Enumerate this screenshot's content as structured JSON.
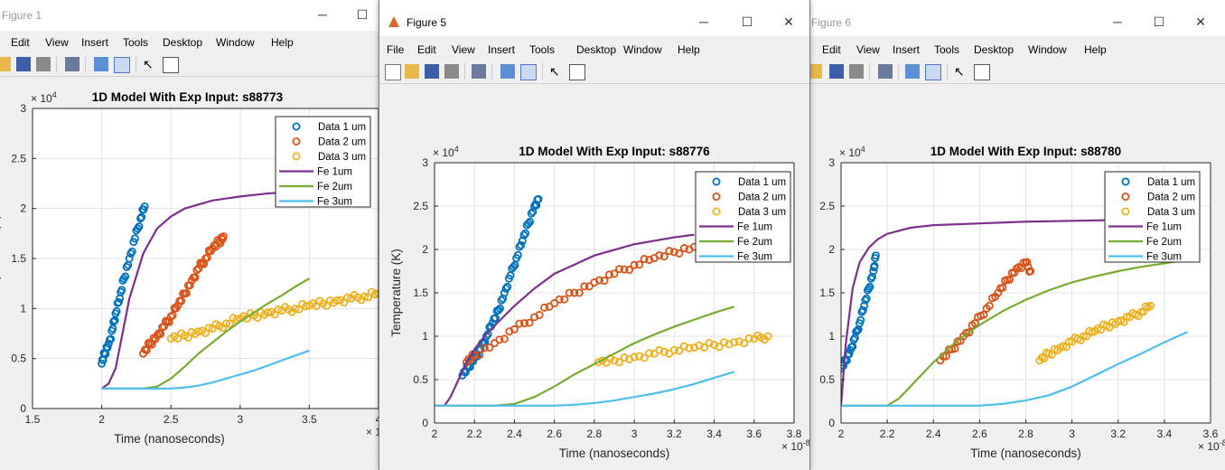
{
  "menu": [
    "File",
    "Edit",
    "View",
    "Insert",
    "Tools",
    "Desktop",
    "Window",
    "Help"
  ],
  "windows": [
    {
      "key": "w1",
      "title": "Figure 1",
      "active": false
    },
    {
      "key": "w5",
      "title": "Figure 5",
      "active": true
    },
    {
      "key": "w6",
      "title": "Figure 6",
      "active": false
    }
  ],
  "axes_common": {
    "xlabel": "Time (nanoseconds)",
    "ylabel": "Temperature (K)",
    "yexp": "× 10",
    "yexp_pow": "4",
    "xexp": "× 10",
    "xexp_pow": "-8"
  },
  "legend_labels": [
    "Data 1 um",
    "Data 2 um",
    "Data 3 um",
    "Fe 1um",
    "Fe 2um",
    "Fe 3um"
  ],
  "colors": {
    "d1": "#0072BD",
    "d2": "#D95319",
    "d3": "#EDB120",
    "fe1": "#7E2F8E",
    "fe2": "#77AC30",
    "fe3": "#4DBEEE"
  },
  "chart_data": [
    {
      "type": "scatter",
      "title": "1D Model With Exp Input: s88773",
      "xlim": [
        1.5,
        4
      ],
      "ylim": [
        0,
        3
      ],
      "xticks": [
        1.5,
        2,
        2.5,
        3,
        3.5,
        4
      ],
      "yticks": [
        0,
        0.5,
        1,
        1.5,
        2,
        2.5,
        3
      ],
      "ytick_labels": [
        "0",
        "0.5",
        "1",
        "1.5",
        "2",
        "2.5",
        "3"
      ],
      "xtick_labels": [
        "1.5",
        "2",
        "2.5",
        "3",
        "3.5",
        "4"
      ],
      "grid": true,
      "legend": "top-right",
      "series": [
        {
          "name": "Data 1 um",
          "kind": "markers",
          "color": "d1",
          "x": [
            2,
            2.02,
            2.05,
            2.08,
            2.1,
            2.13,
            2.16,
            2.2,
            2.24,
            2.28,
            2.31
          ],
          "y": [
            0.45,
            0.55,
            0.65,
            0.8,
            0.95,
            1.1,
            1.3,
            1.5,
            1.7,
            1.9,
            2.02
          ]
        },
        {
          "name": "Data 2 um",
          "kind": "markers",
          "color": "d2",
          "x": [
            2.3,
            2.35,
            2.4,
            2.45,
            2.5,
            2.55,
            2.6,
            2.65,
            2.7,
            2.75,
            2.8,
            2.85,
            2.88
          ],
          "y": [
            0.55,
            0.65,
            0.73,
            0.82,
            0.92,
            1.03,
            1.15,
            1.28,
            1.4,
            1.5,
            1.6,
            1.67,
            1.72
          ]
        },
        {
          "name": "Data 3 um",
          "kind": "markers",
          "color": "d3",
          "x": [
            2.5,
            2.6,
            2.7,
            2.8,
            2.9,
            3,
            3.1,
            3.2,
            3.3,
            3.4,
            3.5,
            3.6,
            3.7,
            3.8,
            3.9,
            4,
            4.1
          ],
          "y": [
            0.7,
            0.73,
            0.77,
            0.8,
            0.85,
            0.9,
            0.93,
            0.96,
            0.98,
            1,
            1.03,
            1.05,
            1.08,
            1.1,
            1.12,
            1.15,
            1.18
          ]
        },
        {
          "name": "Fe 1um",
          "kind": "line",
          "color": "fe1",
          "x": [
            2,
            2.05,
            2.1,
            2.15,
            2.2,
            2.3,
            2.4,
            2.5,
            2.6,
            2.8,
            3,
            3.2,
            3.5
          ],
          "y": [
            0.2,
            0.25,
            0.4,
            0.75,
            1.1,
            1.55,
            1.8,
            1.92,
            2,
            2.08,
            2.12,
            2.15,
            2.18
          ]
        },
        {
          "name": "Fe 2um",
          "kind": "line",
          "color": "fe2",
          "x": [
            2,
            2.3,
            2.4,
            2.5,
            2.6,
            2.7,
            2.8,
            2.9,
            3,
            3.1,
            3.2,
            3.3,
            3.4,
            3.5
          ],
          "y": [
            0.2,
            0.2,
            0.22,
            0.3,
            0.42,
            0.55,
            0.66,
            0.77,
            0.87,
            0.96,
            1.05,
            1.13,
            1.22,
            1.3
          ]
        },
        {
          "name": "Fe 3um",
          "kind": "line",
          "color": "fe3",
          "x": [
            2,
            2.5,
            2.6,
            2.7,
            2.8,
            2.9,
            3,
            3.1,
            3.2,
            3.3,
            3.4,
            3.5
          ],
          "y": [
            0.2,
            0.2,
            0.21,
            0.23,
            0.26,
            0.3,
            0.34,
            0.38,
            0.43,
            0.48,
            0.53,
            0.58
          ]
        }
      ]
    },
    {
      "type": "scatter",
      "title": "1D Model With Exp Input: s88776",
      "xlim": [
        2,
        3.8
      ],
      "ylim": [
        0,
        3
      ],
      "xticks": [
        2,
        2.2,
        2.4,
        2.6,
        2.8,
        3,
        3.2,
        3.4,
        3.6,
        3.8
      ],
      "yticks": [
        0,
        0.5,
        1,
        1.5,
        2,
        2.5,
        3
      ],
      "ytick_labels": [
        "0",
        "0.5",
        "1",
        "1.5",
        "2",
        "2.5",
        "3"
      ],
      "xtick_labels": [
        "2",
        "2.2",
        "2.4",
        "2.6",
        "2.8",
        "3",
        "3.2",
        "3.4",
        "3.6",
        "3.8"
      ],
      "grid": true,
      "legend": "top-right",
      "series": [
        {
          "name": "Data 1 um",
          "kind": "markers",
          "color": "d1",
          "x": [
            2.14,
            2.17,
            2.2,
            2.23,
            2.26,
            2.29,
            2.32,
            2.35,
            2.38,
            2.41,
            2.44,
            2.47,
            2.5,
            2.52
          ],
          "y": [
            0.55,
            0.65,
            0.75,
            0.85,
            1.0,
            1.15,
            1.3,
            1.5,
            1.7,
            1.9,
            2.1,
            2.3,
            2.5,
            2.58
          ]
        },
        {
          "name": "Data 2 um",
          "kind": "markers",
          "color": "d2",
          "x": [
            2.16,
            2.2,
            2.3,
            2.4,
            2.5,
            2.6,
            2.7,
            2.8,
            2.9,
            3,
            3.1,
            3.2,
            3.3
          ],
          "y": [
            0.7,
            0.78,
            0.92,
            1.08,
            1.22,
            1.38,
            1.5,
            1.62,
            1.72,
            1.82,
            1.9,
            1.97,
            2.03
          ]
        },
        {
          "name": "Data 3 um",
          "kind": "markers",
          "color": "d3",
          "x": [
            2.82,
            2.9,
            3,
            3.1,
            3.2,
            3.3,
            3.4,
            3.5,
            3.6,
            3.67
          ],
          "y": [
            0.7,
            0.72,
            0.76,
            0.8,
            0.84,
            0.87,
            0.9,
            0.93,
            0.97,
            1.0
          ]
        },
        {
          "name": "Fe 1um",
          "kind": "line",
          "color": "fe1",
          "x": [
            2,
            2.05,
            2.08,
            2.12,
            2.16,
            2.2,
            2.25,
            2.3,
            2.4,
            2.5,
            2.6,
            2.8,
            3,
            3.2,
            3.3
          ],
          "y": [
            0.2,
            0.2,
            0.3,
            0.5,
            0.7,
            0.85,
            1.0,
            1.12,
            1.35,
            1.55,
            1.72,
            1.93,
            2.06,
            2.14,
            2.17
          ]
        },
        {
          "name": "Fe 2um",
          "kind": "line",
          "color": "fe2",
          "x": [
            2,
            2.3,
            2.4,
            2.5,
            2.6,
            2.7,
            2.8,
            2.9,
            3,
            3.1,
            3.2,
            3.3,
            3.4,
            3.5
          ],
          "y": [
            0.2,
            0.2,
            0.22,
            0.3,
            0.42,
            0.56,
            0.68,
            0.8,
            0.92,
            1.02,
            1.11,
            1.19,
            1.27,
            1.34
          ]
        },
        {
          "name": "Fe 3um",
          "kind": "line",
          "color": "fe3",
          "x": [
            2,
            2.6,
            2.7,
            2.8,
            2.9,
            3,
            3.1,
            3.2,
            3.3,
            3.4,
            3.5
          ],
          "y": [
            0.2,
            0.2,
            0.21,
            0.23,
            0.26,
            0.3,
            0.34,
            0.39,
            0.45,
            0.52,
            0.59
          ]
        }
      ]
    },
    {
      "type": "scatter",
      "title": "1D Model With Exp Input: s88780",
      "xlim": [
        2,
        3.6
      ],
      "ylim": [
        0,
        3
      ],
      "xticks": [
        2,
        2.2,
        2.4,
        2.6,
        2.8,
        3,
        3.2,
        3.4,
        3.6
      ],
      "yticks": [
        0,
        0.5,
        1,
        1.5,
        2,
        2.5,
        3
      ],
      "ytick_labels": [
        "0",
        "0.5",
        "1",
        "1.5",
        "2",
        "2.5",
        "3"
      ],
      "xtick_labels": [
        "2",
        "2.2",
        "2.4",
        "2.6",
        "2.8",
        "3",
        "3.2",
        "3.4",
        "3.6"
      ],
      "grid": true,
      "legend": "top-right",
      "series": [
        {
          "name": "Data 1 um",
          "kind": "markers",
          "color": "d1",
          "x": [
            2,
            2.02,
            2.04,
            2.06,
            2.08,
            2.1,
            2.12,
            2.14,
            2.15
          ],
          "y": [
            0.63,
            0.72,
            0.84,
            0.98,
            1.15,
            1.35,
            1.55,
            1.75,
            1.93
          ]
        },
        {
          "name": "Data 2 um",
          "kind": "markers",
          "color": "d2",
          "x": [
            2.43,
            2.48,
            2.53,
            2.58,
            2.63,
            2.68,
            2.72,
            2.76,
            2.8,
            2.82
          ],
          "y": [
            0.72,
            0.85,
            1.0,
            1.15,
            1.32,
            1.5,
            1.65,
            1.78,
            1.85,
            1.75
          ]
        },
        {
          "name": "Data 3 um",
          "kind": "markers",
          "color": "d3",
          "x": [
            2.86,
            2.9,
            2.95,
            3,
            3.05,
            3.1,
            3.15,
            3.2,
            3.25,
            3.3,
            3.34
          ],
          "y": [
            0.72,
            0.8,
            0.87,
            0.94,
            1.0,
            1.06,
            1.12,
            1.17,
            1.22,
            1.28,
            1.35
          ]
        },
        {
          "name": "Fe 1um",
          "kind": "line",
          "color": "fe1",
          "x": [
            2,
            2.02,
            2.05,
            2.08,
            2.12,
            2.16,
            2.2,
            2.3,
            2.4,
            2.6,
            2.8,
            3,
            3.2
          ],
          "y": [
            0.2,
            0.9,
            1.55,
            1.85,
            2.02,
            2.12,
            2.18,
            2.25,
            2.28,
            2.3,
            2.32,
            2.33,
            2.34
          ]
        },
        {
          "name": "Fe 2um",
          "kind": "line",
          "color": "fe2",
          "x": [
            2,
            2.2,
            2.25,
            2.3,
            2.35,
            2.4,
            2.45,
            2.5,
            2.6,
            2.7,
            2.8,
            2.9,
            3,
            3.1,
            3.2,
            3.3,
            3.4,
            3.5
          ],
          "y": [
            0.2,
            0.2,
            0.28,
            0.42,
            0.56,
            0.7,
            0.82,
            0.94,
            1.13,
            1.29,
            1.42,
            1.53,
            1.62,
            1.69,
            1.75,
            1.8,
            1.84,
            1.88
          ]
        },
        {
          "name": "Fe 3um",
          "kind": "line",
          "color": "fe3",
          "x": [
            2,
            2.6,
            2.7,
            2.8,
            2.9,
            3,
            3.1,
            3.2,
            3.3,
            3.4,
            3.5
          ],
          "y": [
            0.2,
            0.2,
            0.22,
            0.26,
            0.32,
            0.42,
            0.55,
            0.68,
            0.8,
            0.93,
            1.05
          ]
        }
      ]
    }
  ]
}
